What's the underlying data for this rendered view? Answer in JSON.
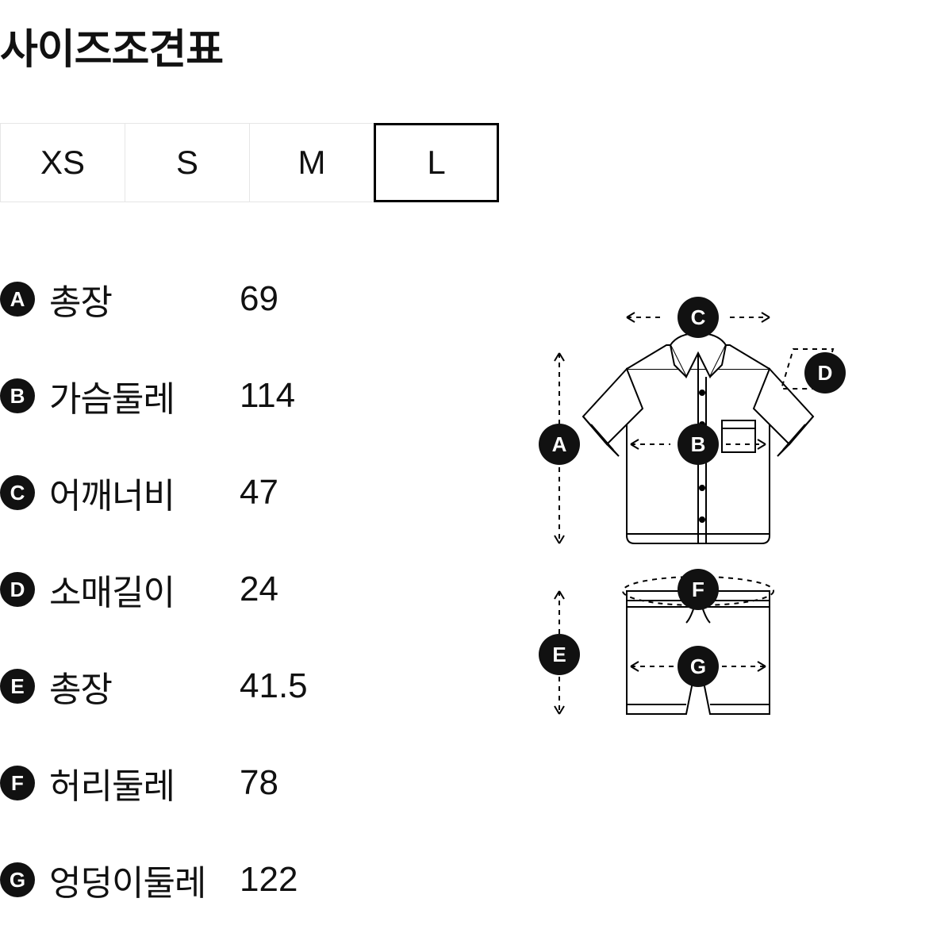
{
  "title": "사이즈조견표",
  "sizes": [
    "XS",
    "S",
    "M",
    "L"
  ],
  "selectedSize": "L",
  "measurements": [
    {
      "key": "A",
      "label": "총장",
      "value": "69"
    },
    {
      "key": "B",
      "label": "가슴둘레",
      "value": "114"
    },
    {
      "key": "C",
      "label": "어깨너비",
      "value": "47"
    },
    {
      "key": "D",
      "label": "소매길이",
      "value": "24"
    },
    {
      "key": "E",
      "label": "총장",
      "value": "41.5"
    },
    {
      "key": "F",
      "label": "허리둘레",
      "value": "78"
    },
    {
      "key": "G",
      "label": "엉덩이둘레",
      "value": "122"
    }
  ],
  "diagram": {
    "type": "infographic",
    "stroke": "#000000",
    "dash": "6,6",
    "strokeWidth": 2,
    "badgeRadius": 26,
    "badgeFill": "#111111",
    "badgeText": "#ffffff",
    "labels": {
      "A": "A",
      "B": "B",
      "C": "C",
      "D": "D",
      "E": "E",
      "F": "F",
      "G": "G"
    }
  }
}
